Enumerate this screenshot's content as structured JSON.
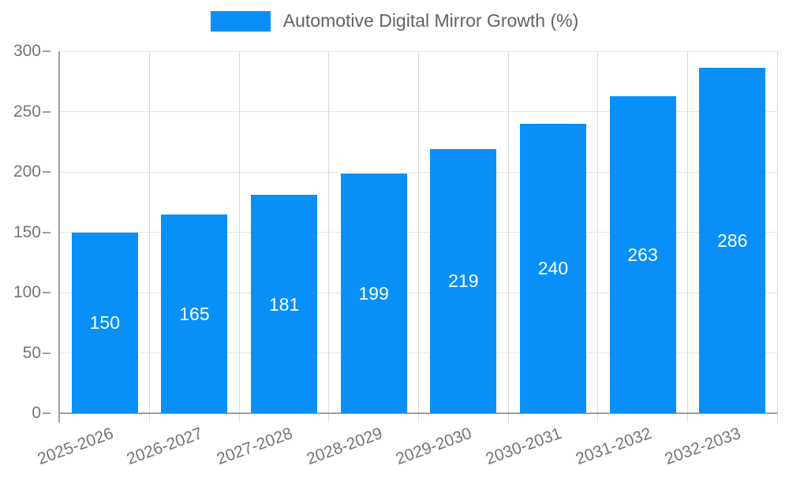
{
  "legend": {
    "label": "Automotive Digital Mirror Growth (%)",
    "position": "top"
  },
  "chart_data": {
    "type": "bar",
    "title": "Automotive Digital Mirror Growth (%)",
    "categories": [
      "2025-2026",
      "2026-2027",
      "2027-2028",
      "2028-2029",
      "2029-2030",
      "2030-2031",
      "2031-2032",
      "2032-2033"
    ],
    "series": [
      {
        "name": "Automotive Digital Mirror Growth (%)",
        "values": [
          150,
          165,
          181,
          199,
          219,
          240,
          263,
          286
        ]
      }
    ],
    "xlabel": "",
    "ylabel": "",
    "ylim": [
      0,
      300
    ],
    "yticks": [
      0,
      50,
      100,
      150,
      200,
      250,
      300
    ],
    "grid": true,
    "legend_position": "top",
    "colors": {
      "bar": "#0890f8",
      "bar_value_text": "#ffffff",
      "axis_text": "#757575",
      "legend_text": "#5f6368",
      "axis_line": "#9e9e9e",
      "gridline_h": "#e6e6e6",
      "gridline_v": "#d9d9d9"
    }
  }
}
